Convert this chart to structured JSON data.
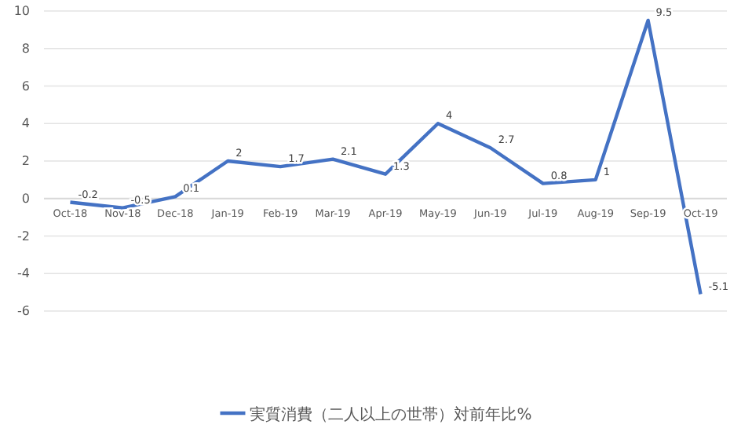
{
  "chart_data": {
    "type": "line",
    "categories": [
      "Oct-18",
      "Nov-18",
      "Dec-18",
      "Jan-19",
      "Feb-19",
      "Mar-19",
      "Apr-19",
      "May-19",
      "Jun-19",
      "Jul-19",
      "Aug-19",
      "Sep-19",
      "Oct-19"
    ],
    "series": [
      {
        "name": "実質消費（二人以上の世帯）対前年比%",
        "color": "#4472c4",
        "values": [
          -0.2,
          -0.5,
          0.1,
          2,
          1.7,
          2.1,
          1.3,
          4,
          2.7,
          0.8,
          1,
          9.5,
          -5.1
        ]
      }
    ],
    "ylim": [
      -6,
      10
    ],
    "yticks": [
      -6,
      -4,
      -2,
      0,
      2,
      4,
      6,
      8,
      10
    ],
    "grid": "y",
    "legend": "bottom",
    "data_labels": true,
    "marker": "none",
    "line_style": "solid"
  }
}
